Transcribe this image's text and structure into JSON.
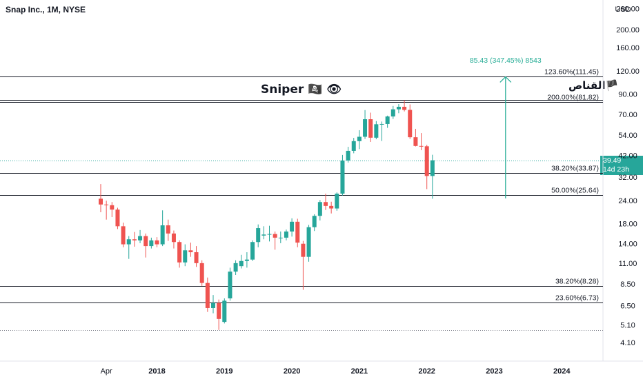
{
  "header": {
    "title": "Snap Inc., 1M, NYSE"
  },
  "annotations": {
    "sniper_label": "Sniper 🏴‍☠️ 👁",
    "arabic_label": "القناص🏴",
    "measure_label": "85.43 (347.45%) 8543"
  },
  "price_badge": {
    "price": "39.49",
    "countdown": "14d 23h"
  },
  "colors": {
    "up": "#26a69a",
    "down": "#ef5350",
    "measure": "#22ab94",
    "fib_line": "#131722",
    "price_line": "#26a69a",
    "dotted_line": "#787b86"
  },
  "axis": {
    "currency": "USD",
    "y_ticks": [
      "260.00",
      "200.00",
      "160.00",
      "120.00",
      "90.00",
      "70.00",
      "54.00",
      "42.00",
      "32.00",
      "24.00",
      "18.00",
      "14.00",
      "11.00",
      "8.50",
      "6.50",
      "5.10",
      "4.10"
    ],
    "x_ticks": [
      "Apr",
      "2018",
      "2019",
      "2020",
      "2021",
      "2022",
      "2023",
      "2024"
    ]
  },
  "fib_levels": [
    {
      "label": "123.60%(111.45)",
      "price": 111.45
    },
    {
      "label": "200.00%(81.82)",
      "price": 81.82
    },
    {
      "label": "38.20%(33.87)",
      "price": 33.87
    },
    {
      "label": "50.00%(25.64)",
      "price": 25.64
    },
    {
      "label": "38.20%(8.28)",
      "price": 8.28
    },
    {
      "label": "23.60%(6.73)",
      "price": 6.73
    }
  ],
  "chart_data": {
    "type": "candlestick",
    "title": "Snap Inc., 1M, NYSE",
    "scale": "log",
    "ylim": [
      3.8,
      275
    ],
    "y_unit": "USD",
    "x_range": [
      "2017-01",
      "2024-05"
    ],
    "last_price": 39.49,
    "measure": {
      "start_price": 24.6,
      "end_price": 111.45,
      "change": 85.43,
      "percent": 347.45,
      "date": "2023-03"
    },
    "candles": [
      {
        "t": "2017-03",
        "o": 24.5,
        "h": 29.4,
        "l": 20.7,
        "c": 22.8
      },
      {
        "t": "2017-04",
        "o": 22.8,
        "h": 23.9,
        "l": 18.9,
        "c": 22.6
      },
      {
        "t": "2017-05",
        "o": 22.6,
        "h": 23.5,
        "l": 19.5,
        "c": 21.4
      },
      {
        "t": "2017-06",
        "o": 21.4,
        "h": 21.9,
        "l": 16.8,
        "c": 17.4
      },
      {
        "t": "2017-07",
        "o": 17.4,
        "h": 18.2,
        "l": 13.4,
        "c": 13.9
      },
      {
        "t": "2017-08",
        "o": 13.9,
        "h": 15.4,
        "l": 11.6,
        "c": 14.8
      },
      {
        "t": "2017-09",
        "o": 14.8,
        "h": 16.2,
        "l": 13.5,
        "c": 14.6
      },
      {
        "t": "2017-10",
        "o": 14.6,
        "h": 16.6,
        "l": 14.1,
        "c": 15.4
      },
      {
        "t": "2017-11",
        "o": 15.4,
        "h": 15.9,
        "l": 11.8,
        "c": 13.6
      },
      {
        "t": "2017-12",
        "o": 13.6,
        "h": 15.1,
        "l": 13.2,
        "c": 14.6
      },
      {
        "t": "2018-01",
        "o": 14.6,
        "h": 15.2,
        "l": 13.4,
        "c": 13.9
      },
      {
        "t": "2018-02",
        "o": 13.9,
        "h": 21.2,
        "l": 13.6,
        "c": 17.6
      },
      {
        "t": "2018-03",
        "o": 17.6,
        "h": 18.9,
        "l": 14.5,
        "c": 15.9
      },
      {
        "t": "2018-04",
        "o": 15.9,
        "h": 16.5,
        "l": 13.2,
        "c": 14.3
      },
      {
        "t": "2018-05",
        "o": 14.3,
        "h": 14.6,
        "l": 10.4,
        "c": 11.1
      },
      {
        "t": "2018-06",
        "o": 11.1,
        "h": 13.9,
        "l": 10.6,
        "c": 12.9
      },
      {
        "t": "2018-07",
        "o": 12.9,
        "h": 14.2,
        "l": 11.9,
        "c": 12.6
      },
      {
        "t": "2018-08",
        "o": 12.6,
        "h": 13.6,
        "l": 10.5,
        "c": 11.0
      },
      {
        "t": "2018-09",
        "o": 11.0,
        "h": 11.4,
        "l": 8.3,
        "c": 8.6
      },
      {
        "t": "2018-10",
        "o": 8.6,
        "h": 9.2,
        "l": 6.0,
        "c": 6.3
      },
      {
        "t": "2018-11",
        "o": 6.3,
        "h": 7.4,
        "l": 5.9,
        "c": 6.7
      },
      {
        "t": "2018-12",
        "o": 6.7,
        "h": 7.0,
        "l": 4.8,
        "c": 5.5
      },
      {
        "t": "2019-01",
        "o": 5.3,
        "h": 7.1,
        "l": 5.2,
        "c": 6.9
      },
      {
        "t": "2019-02",
        "o": 7.1,
        "h": 10.4,
        "l": 6.9,
        "c": 9.9
      },
      {
        "t": "2019-03",
        "o": 9.9,
        "h": 11.4,
        "l": 9.5,
        "c": 11.0
      },
      {
        "t": "2019-04",
        "o": 10.6,
        "h": 12.2,
        "l": 10.3,
        "c": 11.3
      },
      {
        "t": "2019-05",
        "o": 11.3,
        "h": 12.6,
        "l": 10.4,
        "c": 11.5
      },
      {
        "t": "2019-06",
        "o": 11.5,
        "h": 14.6,
        "l": 11.3,
        "c": 14.3
      },
      {
        "t": "2019-07",
        "o": 14.3,
        "h": 17.8,
        "l": 13.4,
        "c": 17.0
      },
      {
        "t": "2019-08",
        "o": 15.5,
        "h": 17.4,
        "l": 14.8,
        "c": 15.7
      },
      {
        "t": "2019-09",
        "o": 15.7,
        "h": 17.5,
        "l": 14.4,
        "c": 15.8
      },
      {
        "t": "2019-10",
        "o": 15.8,
        "h": 16.3,
        "l": 13.0,
        "c": 15.1
      },
      {
        "t": "2019-11",
        "o": 15.1,
        "h": 16.3,
        "l": 14.1,
        "c": 15.1
      },
      {
        "t": "2019-12",
        "o": 15.1,
        "h": 16.7,
        "l": 14.6,
        "c": 16.3
      },
      {
        "t": "2020-01",
        "o": 16.3,
        "h": 19.2,
        "l": 15.3,
        "c": 18.4
      },
      {
        "t": "2020-02",
        "o": 18.4,
        "h": 19.1,
        "l": 13.4,
        "c": 14.2
      },
      {
        "t": "2020-03",
        "o": 14.0,
        "h": 14.5,
        "l": 7.9,
        "c": 11.9
      },
      {
        "t": "2020-04",
        "o": 11.9,
        "h": 17.7,
        "l": 11.2,
        "c": 17.2
      },
      {
        "t": "2020-05",
        "o": 17.2,
        "h": 20.2,
        "l": 16.4,
        "c": 19.8
      },
      {
        "t": "2020-06",
        "o": 19.8,
        "h": 24.1,
        "l": 18.7,
        "c": 23.5
      },
      {
        "t": "2020-07",
        "o": 23.5,
        "h": 26.1,
        "l": 21.3,
        "c": 22.4
      },
      {
        "t": "2020-08",
        "o": 22.4,
        "h": 23.6,
        "l": 20.4,
        "c": 21.7
      },
      {
        "t": "2020-09",
        "o": 21.7,
        "h": 26.5,
        "l": 21.1,
        "c": 26.1
      },
      {
        "t": "2020-10",
        "o": 26.1,
        "h": 42.2,
        "l": 25.5,
        "c": 39.4
      },
      {
        "t": "2020-11",
        "o": 39.4,
        "h": 46.7,
        "l": 38.4,
        "c": 44.4
      },
      {
        "t": "2020-12",
        "o": 44.4,
        "h": 52.2,
        "l": 43.1,
        "c": 50.1
      },
      {
        "t": "2021-01",
        "o": 50.1,
        "h": 57.4,
        "l": 45.4,
        "c": 52.9
      },
      {
        "t": "2021-02",
        "o": 52.9,
        "h": 73.7,
        "l": 51.5,
        "c": 65.8
      },
      {
        "t": "2021-03",
        "o": 65.8,
        "h": 71.4,
        "l": 49.6,
        "c": 52.3
      },
      {
        "t": "2021-04",
        "o": 52.3,
        "h": 64.3,
        "l": 51.3,
        "c": 61.8
      },
      {
        "t": "2021-05",
        "o": 61.8,
        "h": 63.9,
        "l": 50.2,
        "c": 62.0
      },
      {
        "t": "2021-06",
        "o": 62.0,
        "h": 68.8,
        "l": 59.1,
        "c": 68.1
      },
      {
        "t": "2021-07",
        "o": 68.1,
        "h": 77.6,
        "l": 66.0,
        "c": 74.4
      },
      {
        "t": "2021-08",
        "o": 74.4,
        "h": 79.4,
        "l": 70.9,
        "c": 76.8
      },
      {
        "t": "2021-09",
        "o": 76.8,
        "h": 83.3,
        "l": 72.5,
        "c": 73.9
      },
      {
        "t": "2021-10",
        "o": 73.9,
        "h": 79.1,
        "l": 51.5,
        "c": 52.6
      },
      {
        "t": "2021-11",
        "o": 52.6,
        "h": 58.4,
        "l": 46.9,
        "c": 47.2
      },
      {
        "t": "2021-12",
        "o": 47.2,
        "h": 55.4,
        "l": 44.8,
        "c": 47.0
      },
      {
        "t": "2022-01",
        "o": 47.0,
        "h": 47.9,
        "l": 27.6,
        "c": 32.5
      },
      {
        "t": "2022-02",
        "o": 32.5,
        "h": 42.3,
        "l": 24.5,
        "c": 39.49
      }
    ]
  }
}
